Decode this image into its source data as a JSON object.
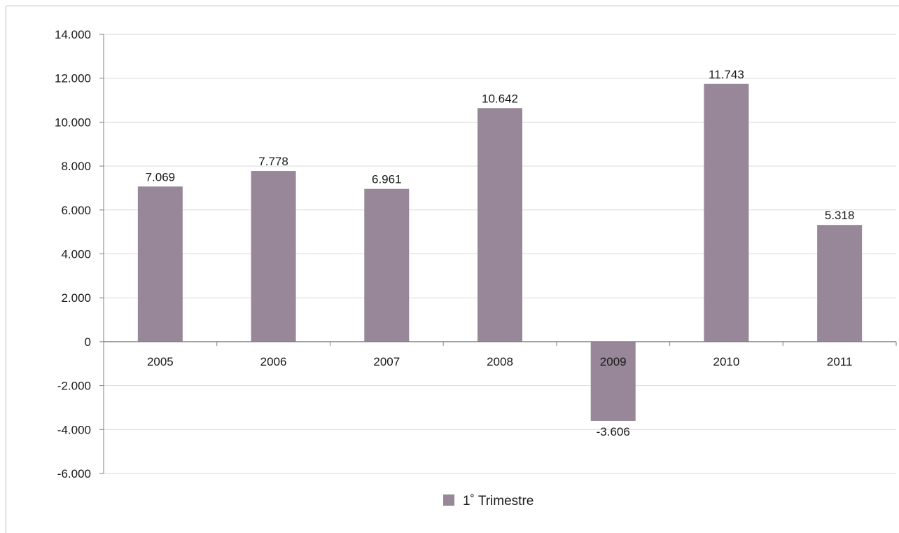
{
  "chart_data": {
    "type": "bar",
    "categories": [
      "2005",
      "2006",
      "2007",
      "2008",
      "2009",
      "2010",
      "2011"
    ],
    "series": [
      {
        "name": "1˚ Trimestre",
        "values": [
          7069,
          7778,
          6961,
          10642,
          -3606,
          11743,
          5318
        ],
        "value_labels": [
          "7.069",
          "7.778",
          "6.961",
          "10.642",
          "-3.606",
          "11.743",
          "5.318"
        ],
        "color": "#978799"
      }
    ],
    "yticks": [
      14000,
      12000,
      10000,
      8000,
      6000,
      4000,
      2000,
      0,
      -2000,
      -4000,
      -6000
    ],
    "ytick_labels": [
      "14.000",
      "12.000",
      "10.000",
      "8.000",
      "6.000",
      "4.000",
      "2.000",
      "0",
      "-2.000",
      "-4.000",
      "-6.000"
    ],
    "ylim": [
      -6000,
      14000
    ],
    "grid": true,
    "legend_position": "bottom",
    "gridline_color": "#d9d9d9",
    "axis_color": "#7f7f7f"
  }
}
